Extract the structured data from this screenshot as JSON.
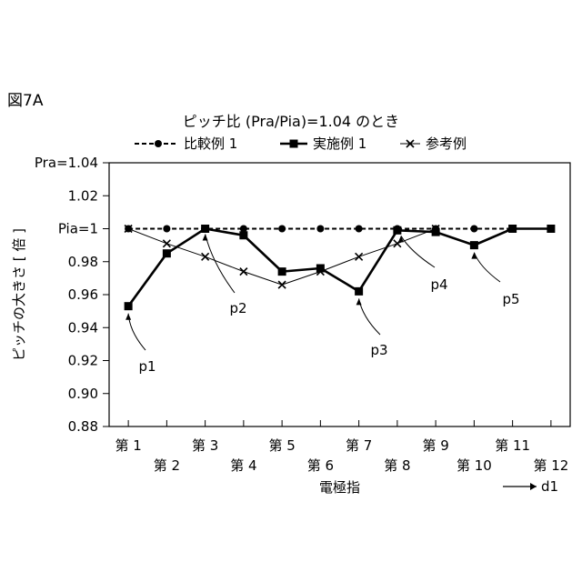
{
  "figure_label": "図7A",
  "chart_data": {
    "type": "line",
    "title": "ピッチ比 (Pra/Pia)=1.04 のとき",
    "xlabel": "電極指",
    "ylabel": "ピッチの大きさ [ 倍 ]",
    "direction_label": "d1",
    "ylim": [
      0.88,
      1.04
    ],
    "y_ticks": [
      "0.88",
      "0.90",
      "0.92",
      "0.94",
      "0.96",
      "0.98",
      "Pia=1",
      "1.02",
      "Pra=1.04"
    ],
    "y_tick_values": [
      0.88,
      0.9,
      0.92,
      0.94,
      0.96,
      0.98,
      1.0,
      1.02,
      1.04
    ],
    "categories": [
      "第 1",
      "第 2",
      "第 3",
      "第 4",
      "第 5",
      "第 6",
      "第 7",
      "第 8",
      "第 9",
      "第 10",
      "第 11",
      "第 12"
    ],
    "x_positions": [
      1.5,
      2.5,
      3.5,
      4.5,
      5.5,
      6.5,
      7.5,
      8.5,
      9.5,
      10.5,
      11.5,
      12.5
    ],
    "series": [
      {
        "name": "比較例 1",
        "marker": "circle",
        "style": "dashed",
        "values": [
          1.0,
          1.0,
          1.0,
          1.0,
          1.0,
          1.0,
          1.0,
          1.0,
          1.0,
          1.0,
          1.0,
          1.0
        ]
      },
      {
        "name": "実施例 1",
        "marker": "square",
        "style": "solid-bold",
        "values": [
          0.953,
          0.985,
          1.0,
          0.996,
          0.974,
          0.976,
          0.962,
          0.999,
          0.998,
          0.99,
          1.0,
          1.0
        ]
      },
      {
        "name": "参考例",
        "marker": "x",
        "style": "solid-thin",
        "x": [
          1.5,
          2.5,
          3.5,
          4.5,
          5.5,
          6.5,
          7.5,
          8.5,
          9.5
        ],
        "values": [
          1.0,
          0.991,
          0.983,
          0.974,
          0.966,
          0.974,
          0.983,
          0.991,
          1.0
        ]
      }
    ],
    "annotations": [
      {
        "label": "p1",
        "x": 1.5,
        "y": 0.953
      },
      {
        "label": "p2",
        "x": 3.5,
        "y": 1.0
      },
      {
        "label": "p3",
        "x": 7.5,
        "y": 0.962
      },
      {
        "label": "p4",
        "x": 8.5,
        "y": 0.999
      },
      {
        "label": "p5",
        "x": 10.5,
        "y": 0.99
      }
    ],
    "legend_position": "top",
    "grid": false
  }
}
